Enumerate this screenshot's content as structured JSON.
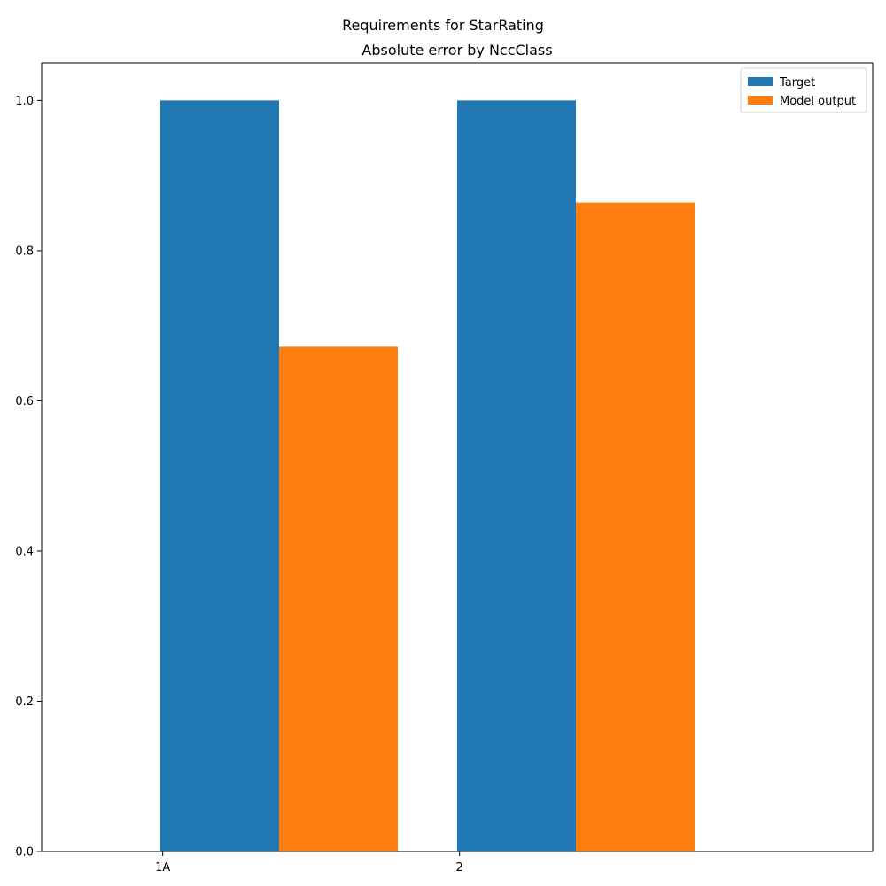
{
  "chart_data": {
    "type": "bar",
    "suptitle": "Requirements for StarRating",
    "title": "Absolute error by NccClass",
    "xlabel": "",
    "ylabel": "",
    "categories": [
      "1A",
      "2"
    ],
    "series": [
      {
        "name": "Target",
        "values": [
          1.0,
          1.0
        ],
        "color": "#1f77b4"
      },
      {
        "name": "Model output",
        "values": [
          0.672,
          0.864
        ],
        "color": "#ff7f0e"
      }
    ],
    "ylim": [
      0,
      1.05
    ],
    "yticks": [
      0.0,
      0.2,
      0.4,
      0.6,
      0.8,
      1.0
    ],
    "ytick_labels": [
      "0.0",
      "0.2",
      "0.4",
      "0.6",
      "0.8",
      "1.0"
    ],
    "grid": false,
    "legend_position": "top-right"
  }
}
